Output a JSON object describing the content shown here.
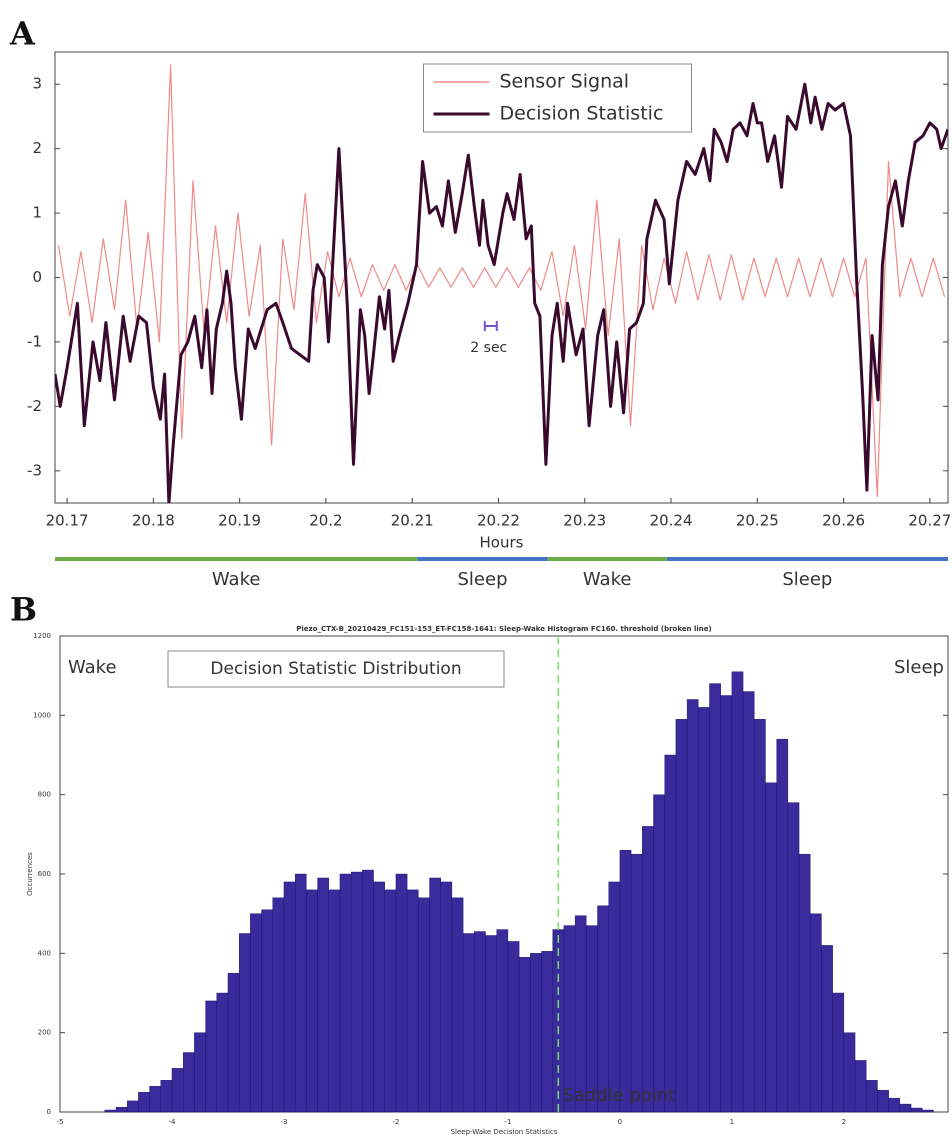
{
  "chart_data": [
    {
      "type": "line",
      "panel": "A",
      "xlabel": "Hours",
      "xlim": [
        20.1686,
        20.2721
      ],
      "xticks": [
        20.17,
        20.18,
        20.19,
        20.2,
        20.21,
        20.22,
        20.23,
        20.24,
        20.25,
        20.26,
        20.27
      ],
      "ylim": [
        -3.5,
        3.5
      ],
      "yticks": [
        -3,
        -2,
        -1,
        0,
        1,
        2,
        3
      ],
      "legend": "top-center",
      "annotation": "2 sec",
      "series": [
        {
          "name": "Sensor Signal",
          "color": "#f08a8a",
          "x": [
            20.169,
            20.1703,
            20.1716,
            20.1729,
            20.1742,
            20.1755,
            20.1768,
            20.1781,
            20.1794,
            20.1807,
            20.182,
            20.1833,
            20.1846,
            20.1859,
            20.1872,
            20.1885,
            20.1898,
            20.1911,
            20.1924,
            20.1937,
            20.195,
            20.1963,
            20.1976,
            20.1989,
            20.2002,
            20.2015,
            20.2028,
            20.2041,
            20.2054,
            20.2067,
            20.208,
            20.2093,
            20.2106,
            20.2119,
            20.2132,
            20.2145,
            20.2158,
            20.2171,
            20.2184,
            20.2197,
            20.221,
            20.2223,
            20.2236,
            20.2249,
            20.2262,
            20.2275,
            20.2288,
            20.2301,
            20.2314,
            20.2327,
            20.234,
            20.2353,
            20.2366,
            20.2379,
            20.2392,
            20.2405,
            20.2418,
            20.2431,
            20.2444,
            20.2457,
            20.247,
            20.2483,
            20.2496,
            20.2509,
            20.2522,
            20.2535,
            20.2548,
            20.2561,
            20.2574,
            20.2587,
            20.26,
            20.2613,
            20.2626,
            20.2639,
            20.2652,
            20.2665,
            20.2678,
            20.2691,
            20.2704,
            20.2717
          ],
          "values": [
            0.5,
            -0.6,
            0.4,
            -0.7,
            0.6,
            -0.5,
            1.2,
            -0.8,
            0.7,
            -1.0,
            3.3,
            -2.5,
            1.5,
            -0.9,
            0.8,
            -0.7,
            1.0,
            -0.6,
            0.5,
            -2.6,
            0.6,
            -0.5,
            1.3,
            -0.7,
            0.4,
            -0.3,
            0.3,
            -0.3,
            0.2,
            -0.2,
            0.2,
            -0.2,
            0.2,
            -0.15,
            0.15,
            -0.15,
            0.15,
            -0.15,
            0.15,
            -0.15,
            0.15,
            -0.15,
            0.15,
            -0.2,
            0.4,
            -0.6,
            0.5,
            -0.8,
            1.2,
            -0.9,
            0.6,
            -2.3,
            0.5,
            -0.5,
            0.3,
            -0.4,
            0.4,
            -0.35,
            0.35,
            -0.35,
            0.35,
            -0.35,
            0.3,
            -0.3,
            0.3,
            -0.3,
            0.3,
            -0.3,
            0.3,
            -0.3,
            0.3,
            -0.3,
            0.3,
            -3.4,
            1.8,
            -0.3,
            0.3,
            -0.3,
            0.3,
            -0.3
          ]
        },
        {
          "name": "Decision Statistic",
          "color": "#3a0a2e",
          "x": [
            20.1686,
            20.1692,
            20.17,
            20.1712,
            20.172,
            20.173,
            20.1738,
            20.1745,
            20.1755,
            20.1765,
            20.1773,
            20.1783,
            20.1792,
            20.18,
            20.1808,
            20.1813,
            20.1818,
            20.1823,
            20.1832,
            20.184,
            20.1848,
            20.1856,
            20.1862,
            20.1868,
            20.1873,
            20.188,
            20.1885,
            20.189,
            20.1895,
            20.1902,
            20.191,
            20.1918,
            20.1925,
            20.1932,
            20.1942,
            20.195,
            20.196,
            20.197,
            20.198,
            20.1985,
            20.199,
            20.1998,
            20.2003,
            20.2015,
            20.2025,
            20.2032,
            20.204,
            20.2045,
            20.205,
            20.2055,
            20.2062,
            20.2068,
            20.2073,
            20.2078,
            20.2085,
            20.2095,
            20.2105,
            20.2112,
            20.212,
            20.2128,
            20.2135,
            20.2142,
            20.215,
            20.2158,
            20.2165,
            20.2172,
            20.2178,
            20.2182,
            20.2188,
            20.2195,
            20.2205,
            20.221,
            20.2218,
            20.2225,
            20.2232,
            20.2238,
            20.2242,
            20.2248,
            20.2255,
            20.2262,
            20.2268,
            20.2275,
            20.228,
            20.229,
            20.2298,
            20.2305,
            20.2315,
            20.2322,
            20.233,
            20.2337,
            20.2345,
            20.2352,
            20.236,
            20.2368,
            20.2372,
            20.2382,
            20.2392,
            20.2398,
            20.2408,
            20.2418,
            20.2428,
            20.2438,
            20.2445,
            20.245,
            20.2458,
            20.2465,
            20.2472,
            20.248,
            20.2488,
            20.2495,
            20.25,
            20.2505,
            20.2512,
            20.252,
            20.2528,
            20.2535,
            20.2545,
            20.2555,
            20.2562,
            20.2567,
            20.2575,
            20.2582,
            20.259,
            20.26,
            20.2608,
            20.2615,
            20.2622,
            20.2627,
            20.2633,
            20.264,
            20.2645,
            20.2652,
            20.266,
            20.2668,
            20.2675,
            20.2683,
            20.2692,
            20.27,
            20.2708,
            20.2713,
            20.2721
          ],
          "values": [
            -1.5,
            -2.0,
            -1.4,
            -0.4,
            -2.3,
            -1.0,
            -1.6,
            -0.7,
            -1.9,
            -0.6,
            -1.3,
            -0.6,
            -0.7,
            -1.7,
            -2.2,
            -1.5,
            -3.5,
            -2.6,
            -1.2,
            -1.0,
            -0.6,
            -1.4,
            -0.5,
            -1.8,
            -0.8,
            -0.4,
            0.1,
            -0.4,
            -1.4,
            -2.2,
            -0.8,
            -1.1,
            -0.8,
            -0.5,
            -0.4,
            -0.7,
            -1.1,
            -1.2,
            -1.3,
            -0.2,
            0.2,
            0.0,
            -1.0,
            2.0,
            -0.5,
            -2.9,
            -0.5,
            -0.9,
            -1.8,
            -1.2,
            -0.3,
            -0.8,
            -0.2,
            -1.3,
            -0.9,
            -0.4,
            0.2,
            1.8,
            1.0,
            1.1,
            0.8,
            1.5,
            0.7,
            1.3,
            1.9,
            1.1,
            0.5,
            1.2,
            0.5,
            0.2,
            1.0,
            1.3,
            0.9,
            1.6,
            0.6,
            0.8,
            -0.4,
            -0.6,
            -2.9,
            -0.9,
            -0.4,
            -1.3,
            -0.4,
            -1.2,
            -0.8,
            -2.3,
            -0.9,
            -0.5,
            -2.0,
            -1.0,
            -2.1,
            -0.8,
            -0.7,
            -0.4,
            0.6,
            1.2,
            0.9,
            -0.1,
            1.2,
            1.8,
            1.6,
            2.0,
            1.5,
            2.3,
            2.1,
            1.8,
            2.3,
            2.4,
            2.2,
            2.7,
            2.4,
            2.4,
            1.8,
            2.2,
            1.4,
            2.5,
            2.3,
            3.0,
            2.4,
            2.8,
            2.3,
            2.7,
            2.6,
            2.7,
            2.2,
            0.0,
            -1.8,
            -3.3,
            -0.9,
            -1.9,
            0.2,
            1.1,
            1.5,
            0.8,
            1.5,
            2.1,
            2.2,
            2.4,
            2.3,
            2.0,
            2.3
          ]
        }
      ],
      "phases": [
        {
          "label": "Wake",
          "start": 20.1686,
          "end": 20.2106,
          "color": "#70ad47"
        },
        {
          "label": "Sleep",
          "start": 20.2106,
          "end": 20.2257,
          "color": "#4472c4"
        },
        {
          "label": "Wake",
          "start": 20.2257,
          "end": 20.2395,
          "color": "#70ad47"
        },
        {
          "label": "Sleep",
          "start": 20.2395,
          "end": 20.2721,
          "color": "#4472c4"
        }
      ]
    },
    {
      "type": "histogram",
      "panel": "B",
      "title": "Piezo_CTX-B_20210429_FC151-153_ET-FC158-1641: Sleep-Wake Histogram FC160. threshold (broken line)",
      "xlabel": "Sleep-Wake Decision Statistics",
      "ylabel": "Occurrences",
      "name": "Decision Statistic Distribution",
      "color": "#3a2a9c",
      "xlim": [
        -5,
        2.93
      ],
      "xticks": [
        -5,
        -4,
        -3,
        -2,
        -1,
        0,
        1,
        2
      ],
      "ylim": [
        0,
        1200
      ],
      "yticks": [
        0,
        200,
        400,
        600,
        800,
        1000,
        1200
      ],
      "bins": [
        -4.6,
        -4.5,
        -4.4,
        -4.3,
        -4.2,
        -4.1,
        -4.0,
        -3.9,
        -3.8,
        -3.7,
        -3.6,
        -3.5,
        -3.4,
        -3.3,
        -3.2,
        -3.1,
        -3.0,
        -2.9,
        -2.8,
        -2.7,
        -2.6,
        -2.5,
        -2.4,
        -2.3,
        -2.2,
        -2.1,
        -2.0,
        -1.9,
        -1.8,
        -1.7,
        -1.6,
        -1.5,
        -1.4,
        -1.3,
        -1.2,
        -1.1,
        -1.0,
        -0.9,
        -0.8,
        -0.7,
        -0.6,
        -0.5,
        -0.4,
        -0.3,
        -0.2,
        -0.1,
        0.0,
        0.1,
        0.2,
        0.3,
        0.4,
        0.5,
        0.6,
        0.7,
        0.8,
        0.9,
        1.0,
        1.1,
        1.2,
        1.3,
        1.4,
        1.5,
        1.6,
        1.7,
        1.8,
        1.9,
        2.0,
        2.1,
        2.2,
        2.3,
        2.4,
        2.5,
        2.6,
        2.7,
        2.8
      ],
      "values": [
        5,
        12,
        28,
        50,
        65,
        80,
        110,
        150,
        200,
        280,
        300,
        350,
        450,
        500,
        510,
        540,
        580,
        600,
        560,
        590,
        560,
        600,
        605,
        610,
        580,
        560,
        600,
        560,
        540,
        590,
        580,
        540,
        450,
        455,
        445,
        460,
        430,
        390,
        400,
        405,
        460,
        470,
        495,
        470,
        520,
        580,
        660,
        650,
        720,
        800,
        900,
        990,
        1040,
        1020,
        1080,
        1050,
        1110,
        1060,
        990,
        830,
        940,
        780,
        650,
        500,
        420,
        300,
        200,
        130,
        80,
        55,
        35,
        20,
        10,
        5
      ],
      "threshold": -0.55,
      "threshold_label": "Saddle point",
      "threshold_color": "#7ddc6a",
      "side_labels": [
        {
          "text": "Wake",
          "color": "#5aa83c"
        },
        {
          "text": "Sleep",
          "color": "#3347b8"
        }
      ]
    }
  ]
}
